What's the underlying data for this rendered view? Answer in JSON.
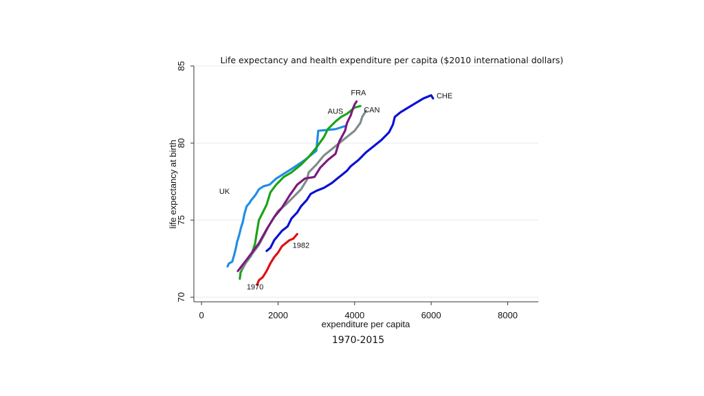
{
  "caption": "1970-2015",
  "chart_data": {
    "type": "line",
    "title": "Life expectancy and health expenditure per capita ($2010 international dollars)",
    "xlabel": "expenditure per capita",
    "ylabel": "life expectancy at birth",
    "xlim": [
      -200,
      8800
    ],
    "ylim": [
      69.7,
      85
    ],
    "xticks": [
      0,
      2000,
      4000,
      6000,
      8000
    ],
    "yticks": [
      70,
      75,
      80,
      85
    ],
    "grid": true,
    "legend": "none",
    "series": [
      {
        "label": "UK",
        "color": "#1f8ee6",
        "points": [
          [
            680,
            72.0
          ],
          [
            720,
            72.2
          ],
          [
            800,
            72.3
          ],
          [
            850,
            72.7
          ],
          [
            900,
            73.2
          ],
          [
            930,
            73.6
          ],
          [
            980,
            74.0
          ],
          [
            1030,
            74.5
          ],
          [
            1080,
            74.9
          ],
          [
            1120,
            75.4
          ],
          [
            1180,
            75.9
          ],
          [
            1250,
            76.1
          ],
          [
            1300,
            76.3
          ],
          [
            1400,
            76.6
          ],
          [
            1500,
            77.0
          ],
          [
            1620,
            77.2
          ],
          [
            1780,
            77.3
          ],
          [
            1950,
            77.7
          ],
          [
            2150,
            78.0
          ],
          [
            2400,
            78.4
          ],
          [
            2700,
            78.9
          ],
          [
            3000,
            79.5
          ],
          [
            3050,
            80.8
          ],
          [
            3500,
            80.9
          ],
          [
            3750,
            81.1
          ]
        ]
      },
      {
        "label": "AUS",
        "color": "#1aa31a",
        "points": [
          [
            1000,
            71.2
          ],
          [
            1020,
            71.6
          ],
          [
            1150,
            72.2
          ],
          [
            1300,
            72.7
          ],
          [
            1400,
            73.5
          ],
          [
            1450,
            74.3
          ],
          [
            1500,
            75.0
          ],
          [
            1600,
            75.5
          ],
          [
            1700,
            76.0
          ],
          [
            1800,
            76.8
          ],
          [
            1950,
            77.3
          ],
          [
            2150,
            77.8
          ],
          [
            2350,
            78.1
          ],
          [
            2600,
            78.6
          ],
          [
            2800,
            79.1
          ],
          [
            3000,
            79.7
          ],
          [
            3200,
            80.4
          ],
          [
            3300,
            80.9
          ],
          [
            3500,
            81.4
          ],
          [
            3650,
            81.7
          ],
          [
            3800,
            81.9
          ],
          [
            4000,
            82.3
          ],
          [
            4150,
            82.4
          ]
        ]
      },
      {
        "label": "CAN",
        "color": "#7f8c8d",
        "points": [
          [
            1050,
            71.8
          ],
          [
            1200,
            72.4
          ],
          [
            1350,
            72.9
          ],
          [
            1500,
            73.4
          ],
          [
            1650,
            74.1
          ],
          [
            1750,
            74.6
          ],
          [
            1850,
            75.0
          ],
          [
            2000,
            75.6
          ],
          [
            2200,
            76.0
          ],
          [
            2400,
            76.5
          ],
          [
            2600,
            77.0
          ],
          [
            2700,
            77.4
          ],
          [
            2750,
            77.6
          ],
          [
            2800,
            78.1
          ],
          [
            3000,
            78.6
          ],
          [
            3200,
            79.2
          ],
          [
            3400,
            79.6
          ],
          [
            3600,
            80.0
          ],
          [
            3800,
            80.4
          ],
          [
            4000,
            80.8
          ],
          [
            4150,
            81.3
          ],
          [
            4200,
            81.7
          ],
          [
            4300,
            82.1
          ]
        ]
      },
      {
        "label": "FRA",
        "color": "#7b1a7e",
        "points": [
          [
            950,
            71.7
          ],
          [
            1200,
            72.5
          ],
          [
            1500,
            73.5
          ],
          [
            1700,
            74.4
          ],
          [
            1900,
            75.2
          ],
          [
            2100,
            75.8
          ],
          [
            2300,
            76.6
          ],
          [
            2500,
            77.3
          ],
          [
            2700,
            77.7
          ],
          [
            2950,
            77.8
          ],
          [
            3100,
            78.4
          ],
          [
            3300,
            78.9
          ],
          [
            3500,
            79.3
          ],
          [
            3600,
            80.1
          ],
          [
            3750,
            80.8
          ],
          [
            3800,
            81.3
          ],
          [
            3900,
            81.8
          ],
          [
            3950,
            82.2
          ],
          [
            4000,
            82.5
          ],
          [
            4050,
            82.7
          ]
        ]
      },
      {
        "label": "CHE",
        "color": "#0a10d6",
        "points": [
          [
            1700,
            73.0
          ],
          [
            1800,
            73.2
          ],
          [
            1900,
            73.7
          ],
          [
            2000,
            74.0
          ],
          [
            2100,
            74.3
          ],
          [
            2250,
            74.6
          ],
          [
            2350,
            75.1
          ],
          [
            2500,
            75.5
          ],
          [
            2600,
            75.9
          ],
          [
            2750,
            76.3
          ],
          [
            2850,
            76.7
          ],
          [
            3000,
            76.9
          ],
          [
            3200,
            77.1
          ],
          [
            3400,
            77.4
          ],
          [
            3600,
            77.8
          ],
          [
            3800,
            78.2
          ],
          [
            3900,
            78.5
          ],
          [
            4100,
            78.9
          ],
          [
            4300,
            79.4
          ],
          [
            4500,
            79.8
          ],
          [
            4700,
            80.2
          ],
          [
            4900,
            80.7
          ],
          [
            5000,
            81.2
          ],
          [
            5050,
            81.7
          ],
          [
            5200,
            82.0
          ],
          [
            5400,
            82.3
          ],
          [
            5600,
            82.6
          ],
          [
            5800,
            82.9
          ],
          [
            6000,
            83.1
          ],
          [
            6050,
            82.9
          ]
        ]
      },
      {
        "label": "1970–1982",
        "color": "#e01010",
        "points": [
          [
            1450,
            70.8
          ],
          [
            1500,
            71.1
          ],
          [
            1600,
            71.3
          ],
          [
            1700,
            71.7
          ],
          [
            1800,
            72.2
          ],
          [
            1900,
            72.6
          ],
          [
            2000,
            72.9
          ],
          [
            2100,
            73.3
          ],
          [
            2200,
            73.5
          ],
          [
            2300,
            73.7
          ],
          [
            2400,
            73.8
          ],
          [
            2500,
            74.1
          ]
        ]
      }
    ],
    "annotations": [
      {
        "text": "UK",
        "x": 600,
        "y": 76.7
      },
      {
        "text": "AUS",
        "x": 3500,
        "y": 81.9
      },
      {
        "text": "FRA",
        "x": 4100,
        "y": 83.1
      },
      {
        "text": "CAN",
        "x": 4450,
        "y": 82.0
      },
      {
        "text": "CHE",
        "x": 6350,
        "y": 82.9
      },
      {
        "text": "1982",
        "x": 2600,
        "y": 73.2
      },
      {
        "text": "1970",
        "x": 1400,
        "y": 70.5
      }
    ]
  }
}
